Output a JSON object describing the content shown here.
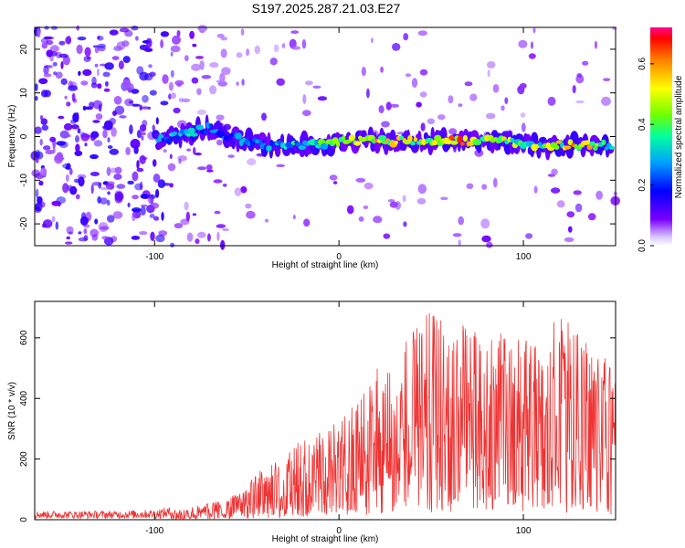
{
  "title": "S197.2025.287.21.03.E27",
  "chart_data": [
    {
      "type": "heatmap",
      "title": "S197.2025.287.21.03.E27",
      "xlabel": "Height of straight line (km)",
      "ylabel": "Frequency (Hz)",
      "xlim": [
        -165,
        150
      ],
      "ylim": [
        -25,
        25
      ],
      "xticks": [
        -100,
        0,
        100
      ],
      "yticks": [
        -20,
        -10,
        0,
        10,
        20
      ],
      "description_of_data": "Spectral line near 0 Hz (slight negative offset ~ -2 Hz) visible from about -100 km to 150 km; broadband noise below about -90 km",
      "ridge": {
        "x": [
          -98,
          -90,
          -80,
          -70,
          -60,
          -50,
          -40,
          -30,
          -20,
          -10,
          0,
          10,
          20,
          30,
          40,
          50,
          60,
          70,
          80,
          90,
          100,
          110,
          120,
          130,
          140,
          148
        ],
        "y": [
          -1,
          0,
          1,
          2,
          0,
          -1,
          -2,
          -2,
          -2,
          -2,
          -1,
          -1,
          -1,
          -1,
          -1,
          -1,
          -1,
          -1,
          -1,
          -1,
          -2,
          -2,
          -2,
          -2,
          -2,
          -2
        ],
        "amp": [
          0.3,
          0.35,
          0.35,
          0.3,
          0.25,
          0.3,
          0.3,
          0.35,
          0.4,
          0.45,
          0.45,
          0.55,
          0.6,
          0.65,
          0.55,
          0.55,
          0.7,
          0.6,
          0.6,
          0.55,
          0.5,
          0.5,
          0.55,
          0.65,
          0.55,
          0.45
        ]
      },
      "colorbar": {
        "label": "Normalized spectral amplitude",
        "range": [
          0.0,
          0.72
        ],
        "ticks": [
          0.0,
          0.2,
          0.4,
          0.6
        ],
        "tick_labels": [
          "0.0",
          "0.2",
          "0.4",
          "0.6"
        ]
      }
    },
    {
      "type": "line",
      "title": "",
      "xlabel": "Height of straight line (km)",
      "ylabel": "SNR (10 * v/v)",
      "xlim": [
        -165,
        150
      ],
      "ylim": [
        0,
        720
      ],
      "xticks": [
        -100,
        0,
        100
      ],
      "yticks": [
        0,
        200,
        400,
        600
      ],
      "color": "#ee3333",
      "series": [
        {
          "name": "SNR",
          "envelope_x": [
            -165,
            -140,
            -120,
            -100,
            -90,
            -80,
            -70,
            -60,
            -50,
            -40,
            -30,
            -20,
            -10,
            0,
            10,
            20,
            30,
            40,
            50,
            60,
            70,
            80,
            90,
            100,
            110,
            120,
            130,
            140,
            150
          ],
          "envelope_max": [
            25,
            25,
            25,
            30,
            40,
            45,
            55,
            70,
            115,
            180,
            200,
            280,
            300,
            320,
            420,
            500,
            560,
            620,
            700,
            640,
            660,
            590,
            640,
            600,
            580,
            690,
            620,
            560,
            500
          ]
        }
      ]
    }
  ]
}
